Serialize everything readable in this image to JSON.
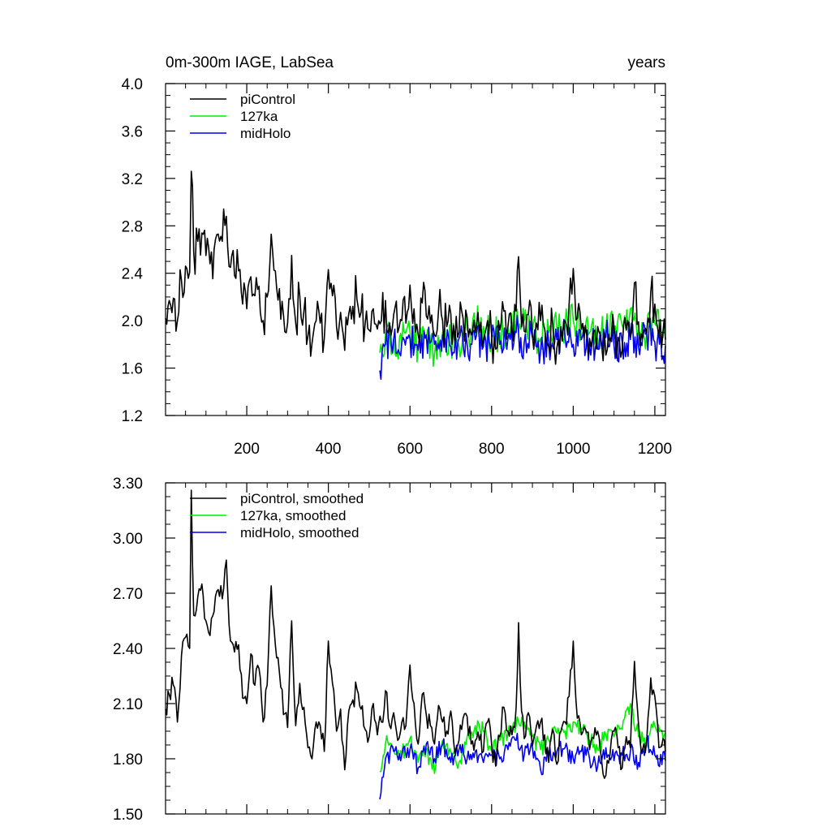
{
  "colors": {
    "piControl": "#000000",
    "ka127": "#00ee00",
    "midHolo": "#0000ee"
  },
  "chart_data": [
    {
      "type": "line",
      "title": "0m-300m IAGE, LabSea",
      "title_right": "years",
      "xlabel": "",
      "ylabel": "",
      "xlim": [
        1,
        1226
      ],
      "ylim": [
        1.2,
        4.0
      ],
      "grid": false,
      "legend_position": "top-left",
      "x_ticks": [
        200,
        400,
        600,
        800,
        1000,
        1200
      ],
      "x_tick_labels": [
        "200",
        "400",
        "600",
        "800",
        "1000",
        "1200"
      ],
      "y_ticks": [
        1.2,
        1.6,
        2.0,
        2.4,
        2.8,
        3.2,
        3.6,
        4.0
      ],
      "y_tick_labels": [
        "1.2",
        "1.6",
        "2.0",
        "2.4",
        "2.8",
        "3.2",
        "3.6",
        "4.0"
      ],
      "series": [
        {
          "name": "piControl",
          "color": "#000000",
          "x": [
            1,
            10,
            20,
            30,
            40,
            50,
            60,
            64,
            70,
            80,
            90,
            100,
            110,
            120,
            130,
            140,
            150,
            160,
            170,
            180,
            190,
            200,
            210,
            220,
            230,
            240,
            250,
            260,
            270,
            280,
            290,
            300,
            310,
            320,
            330,
            340,
            350,
            360,
            370,
            380,
            390,
            400,
            410,
            420,
            430,
            440,
            450,
            460,
            470,
            480,
            490,
            500,
            510,
            520,
            530,
            540,
            550,
            560,
            570,
            580,
            590,
            600,
            610,
            620,
            630,
            640,
            650,
            660,
            670,
            680,
            690,
            700,
            710,
            720,
            730,
            740,
            750,
            760,
            770,
            780,
            790,
            800,
            810,
            820,
            830,
            840,
            850,
            860,
            866,
            870,
            880,
            890,
            900,
            910,
            920,
            930,
            940,
            950,
            960,
            970,
            980,
            990,
            1000,
            1010,
            1020,
            1030,
            1040,
            1050,
            1060,
            1070,
            1080,
            1090,
            1100,
            1110,
            1120,
            1130,
            1140,
            1150,
            1160,
            1170,
            1180,
            1190,
            1200,
            1210,
            1220,
            1226
          ],
          "y": [
            2.02,
            2.17,
            2.19,
            2.0,
            2.34,
            2.46,
            2.41,
            3.26,
            2.58,
            2.67,
            2.74,
            2.55,
            2.48,
            2.6,
            2.73,
            2.67,
            2.88,
            2.45,
            2.38,
            2.42,
            2.14,
            2.1,
            2.37,
            2.21,
            2.29,
            2.0,
            2.2,
            2.73,
            2.42,
            2.27,
            2.05,
            1.98,
            2.55,
            1.98,
            2.21,
            2.08,
            1.87,
            1.81,
            2.0,
            1.98,
            1.85,
            2.43,
            2.21,
            1.95,
            2.07,
            1.75,
            2.06,
            2.12,
            2.18,
            2.07,
            1.97,
            1.92,
            2.1,
            1.93,
            2.0,
            2.17,
            1.98,
            2.05,
            1.9,
            2.0,
            1.98,
            2.3,
            2.1,
            1.88,
            2.15,
            2.04,
            1.98,
            1.88,
            2.09,
            2.0,
            1.95,
            2.06,
            1.83,
            1.9,
            2.02,
            2.03,
            1.88,
            1.9,
            1.9,
            1.84,
            2.0,
            1.88,
            1.76,
            1.92,
            2.08,
            1.95,
            1.93,
            2.08,
            2.54,
            2.22,
            1.91,
            2.05,
            1.87,
            1.98,
            2.0,
            1.93,
            1.78,
            1.96,
            1.77,
            1.95,
            2.0,
            2.14,
            2.44,
            2.02,
            1.93,
            1.96,
            1.85,
            1.91,
            1.95,
            1.78,
            1.71,
            1.82,
            1.95,
            1.86,
            1.75,
            1.92,
            1.86,
            2.32,
            1.99,
            1.85,
            1.9,
            2.24,
            2.14,
            1.86,
            1.91,
            1.84
          ]
        },
        {
          "name": "127ka",
          "color": "#00ee00",
          "x": [
            526,
            540,
            560,
            580,
            600,
            620,
            640,
            660,
            680,
            700,
            720,
            740,
            760,
            780,
            800,
            820,
            840,
            860,
            880,
            900,
            920,
            940,
            960,
            980,
            1000,
            1020,
            1040,
            1060,
            1080,
            1100,
            1120,
            1140,
            1160,
            1180,
            1200,
            1226
          ],
          "y": [
            1.73,
            1.88,
            1.85,
            1.82,
            1.91,
            1.78,
            1.85,
            1.72,
            1.9,
            1.84,
            1.78,
            1.92,
            1.98,
            1.95,
            1.84,
            1.9,
            1.94,
            1.98,
            2.0,
            1.92,
            1.85,
            1.9,
            1.94,
            1.95,
            2.0,
            1.96,
            1.9,
            1.85,
            1.93,
            1.92,
            1.96,
            2.1,
            1.92,
            1.9,
            1.98,
            1.94
          ]
        },
        {
          "name": "midHolo",
          "color": "#0000ee",
          "x": [
            526,
            540,
            560,
            580,
            600,
            620,
            640,
            660,
            680,
            700,
            720,
            740,
            760,
            780,
            800,
            820,
            840,
            860,
            880,
            900,
            920,
            940,
            960,
            980,
            1000,
            1020,
            1040,
            1060,
            1080,
            1100,
            1120,
            1140,
            1160,
            1180,
            1200,
            1226
          ],
          "y": [
            1.58,
            1.8,
            1.84,
            1.82,
            1.85,
            1.75,
            1.88,
            1.8,
            1.88,
            1.78,
            1.85,
            1.8,
            1.84,
            1.78,
            1.82,
            1.8,
            1.85,
            1.9,
            1.82,
            1.86,
            1.74,
            1.82,
            1.84,
            1.86,
            1.8,
            1.84,
            1.8,
            1.76,
            1.86,
            1.79,
            1.82,
            1.84,
            1.78,
            1.9,
            1.82,
            1.79
          ]
        }
      ]
    },
    {
      "type": "line",
      "title": "",
      "xlabel": "",
      "ylabel": "",
      "xlim": [
        1,
        1226
      ],
      "ylim": [
        1.5,
        3.3
      ],
      "grid": false,
      "legend_position": "top-left",
      "x_ticks": [
        200,
        400,
        600,
        800,
        1000,
        1200
      ],
      "y_ticks": [
        1.5,
        1.8,
        2.1,
        2.4,
        2.7,
        3.0,
        3.3
      ],
      "y_tick_labels": [
        "1.50",
        "1.80",
        "2.10",
        "2.40",
        "2.70",
        "3.00",
        "3.30"
      ],
      "series": [
        {
          "name": "piControl, smoothed",
          "color": "#000000",
          "x": [
            1,
            10,
            20,
            30,
            40,
            50,
            60,
            64,
            70,
            80,
            90,
            100,
            110,
            120,
            130,
            140,
            150,
            160,
            170,
            180,
            190,
            200,
            210,
            220,
            230,
            240,
            250,
            260,
            270,
            280,
            290,
            300,
            310,
            320,
            330,
            340,
            350,
            360,
            370,
            380,
            390,
            400,
            410,
            420,
            430,
            440,
            450,
            460,
            470,
            480,
            490,
            500,
            510,
            520,
            530,
            540,
            550,
            560,
            570,
            580,
            590,
            600,
            610,
            620,
            630,
            640,
            650,
            660,
            670,
            680,
            690,
            700,
            710,
            720,
            730,
            740,
            750,
            760,
            770,
            780,
            790,
            800,
            810,
            820,
            830,
            840,
            850,
            860,
            866,
            870,
            880,
            890,
            900,
            910,
            920,
            930,
            940,
            950,
            960,
            970,
            980,
            990,
            1000,
            1010,
            1020,
            1030,
            1040,
            1050,
            1060,
            1070,
            1080,
            1090,
            1100,
            1110,
            1120,
            1130,
            1140,
            1150,
            1160,
            1170,
            1180,
            1190,
            1200,
            1210,
            1220,
            1226
          ],
          "y": [
            2.07,
            2.15,
            2.2,
            2.0,
            2.36,
            2.46,
            2.4,
            3.26,
            2.58,
            2.68,
            2.75,
            2.55,
            2.47,
            2.6,
            2.72,
            2.67,
            2.88,
            2.44,
            2.38,
            2.42,
            2.13,
            2.1,
            2.37,
            2.2,
            2.29,
            2.0,
            2.2,
            2.74,
            2.42,
            2.27,
            2.04,
            1.97,
            2.55,
            1.98,
            2.21,
            2.08,
            1.86,
            1.8,
            2.0,
            1.98,
            1.84,
            2.44,
            2.21,
            1.95,
            2.07,
            1.74,
            2.06,
            2.12,
            2.18,
            2.07,
            1.96,
            1.92,
            2.1,
            1.93,
            2.0,
            2.17,
            1.98,
            2.05,
            1.9,
            2.0,
            1.98,
            2.31,
            2.1,
            1.88,
            2.15,
            2.04,
            1.98,
            1.88,
            2.09,
            2.0,
            1.95,
            2.06,
            1.83,
            1.9,
            2.02,
            2.03,
            1.88,
            1.9,
            1.9,
            1.84,
            2.0,
            1.88,
            1.76,
            1.92,
            2.08,
            1.95,
            1.93,
            2.08,
            2.54,
            2.22,
            1.91,
            2.05,
            1.87,
            1.98,
            2.0,
            1.93,
            1.78,
            1.96,
            1.77,
            1.95,
            2.0,
            2.14,
            2.44,
            2.02,
            1.93,
            1.96,
            1.85,
            1.91,
            1.95,
            1.78,
            1.71,
            1.82,
            1.95,
            1.86,
            1.75,
            1.92,
            1.86,
            2.33,
            1.99,
            1.85,
            1.9,
            2.24,
            2.14,
            1.86,
            1.91,
            1.84
          ]
        },
        {
          "name": "127ka, smoothed",
          "color": "#00ee00",
          "x": [
            526,
            540,
            560,
            580,
            600,
            620,
            640,
            660,
            680,
            700,
            720,
            740,
            760,
            780,
            800,
            820,
            840,
            860,
            880,
            900,
            920,
            940,
            960,
            980,
            1000,
            1020,
            1040,
            1060,
            1080,
            1100,
            1120,
            1140,
            1160,
            1180,
            1200,
            1226
          ],
          "y": [
            1.73,
            1.88,
            1.85,
            1.82,
            1.91,
            1.78,
            1.85,
            1.72,
            1.9,
            1.84,
            1.78,
            1.92,
            1.98,
            1.95,
            1.84,
            1.9,
            1.94,
            1.98,
            2.0,
            1.92,
            1.85,
            1.9,
            1.94,
            1.95,
            2.0,
            1.96,
            1.9,
            1.85,
            1.93,
            1.92,
            1.96,
            2.1,
            1.92,
            1.9,
            1.98,
            1.94
          ]
        },
        {
          "name": "midHolo, smoothed",
          "color": "#0000ee",
          "x": [
            526,
            540,
            560,
            580,
            600,
            620,
            640,
            660,
            680,
            700,
            720,
            740,
            760,
            780,
            800,
            820,
            840,
            860,
            880,
            900,
            920,
            940,
            960,
            980,
            1000,
            1020,
            1040,
            1060,
            1080,
            1100,
            1120,
            1140,
            1160,
            1180,
            1200,
            1226
          ],
          "y": [
            1.58,
            1.8,
            1.84,
            1.82,
            1.85,
            1.75,
            1.88,
            1.8,
            1.88,
            1.78,
            1.85,
            1.8,
            1.84,
            1.78,
            1.82,
            1.8,
            1.85,
            1.9,
            1.82,
            1.86,
            1.74,
            1.82,
            1.84,
            1.86,
            1.8,
            1.84,
            1.8,
            1.76,
            1.86,
            1.79,
            1.82,
            1.84,
            1.78,
            1.9,
            1.82,
            1.79
          ]
        }
      ]
    }
  ]
}
